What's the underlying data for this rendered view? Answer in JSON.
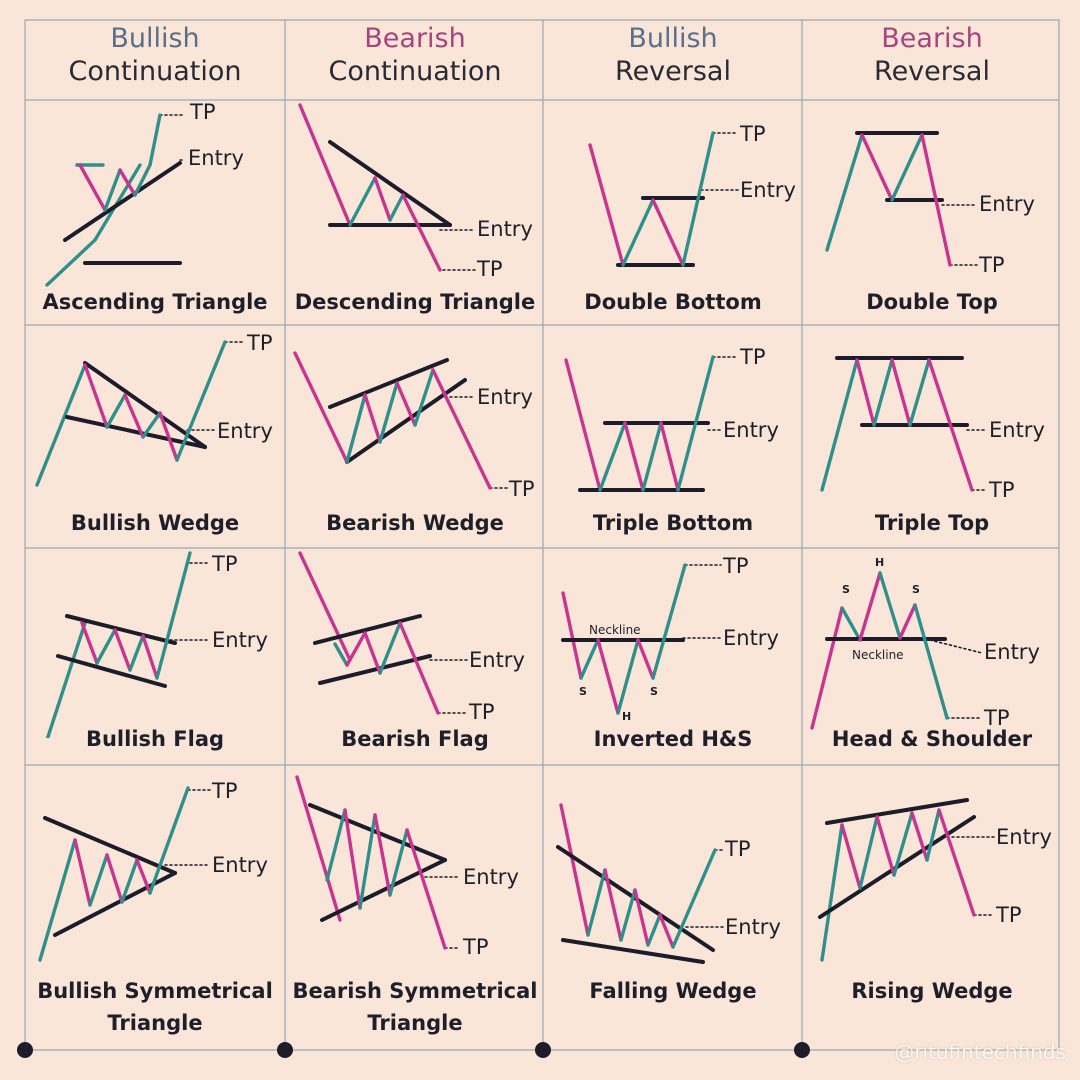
{
  "colors": {
    "background": "#f9e6d8",
    "teal": "#2f8f8a",
    "magenta": "#c8348f",
    "dark": "#1c1c2b",
    "grid": "#9aa7b3",
    "bullish_header": "#5a6f8a",
    "bearish_header": "#a8437f"
  },
  "headers": [
    {
      "line1": "Bullish",
      "line2": "Continuation",
      "tone": "bullish"
    },
    {
      "line1": "Bearish",
      "line2": "Continuation",
      "tone": "bearish"
    },
    {
      "line1": "Bullish",
      "line2": "Reversal",
      "tone": "bullish"
    },
    {
      "line1": "Bearish",
      "line2": "Reversal",
      "tone": "bearish"
    }
  ],
  "patterns": [
    {
      "name": "Ascending Triangle",
      "tp": "TP",
      "entry": "Entry"
    },
    {
      "name": "Descending Triangle",
      "tp": "TP",
      "entry": "Entry"
    },
    {
      "name": "Double Bottom",
      "tp": "TP",
      "entry": "Entry"
    },
    {
      "name": "Double Top",
      "tp": "TP",
      "entry": "Entry"
    },
    {
      "name": "Bullish Wedge",
      "tp": "TP",
      "entry": "Entry"
    },
    {
      "name": "Bearish Wedge",
      "tp": "TP",
      "entry": "Entry"
    },
    {
      "name": "Triple Bottom",
      "tp": "TP",
      "entry": "Entry"
    },
    {
      "name": "Triple Top",
      "tp": "TP",
      "entry": "Entry"
    },
    {
      "name": "Bullish Flag",
      "tp": "TP",
      "entry": "Entry"
    },
    {
      "name": "Bearish Flag",
      "tp": "TP",
      "entry": "Entry"
    },
    {
      "name": "Inverted H&S",
      "tp": "TP",
      "entry": "Entry",
      "neckline": "Neckline",
      "s": "S",
      "h": "H"
    },
    {
      "name": "Head & Shoulder",
      "tp": "TP",
      "entry": "Entry",
      "neckline": "Neckline",
      "s": "S",
      "h": "H"
    },
    {
      "name": "Bullish Symmetrical\nTriangle",
      "tp": "TP",
      "entry": "Entry"
    },
    {
      "name": "Bearish Symmetrical\nTriangle",
      "tp": "TP",
      "entry": "Entry"
    },
    {
      "name": "Falling Wedge",
      "tp": "TP",
      "entry": "Entry"
    },
    {
      "name": "Rising Wedge",
      "tp": "TP",
      "entry": "Entry"
    }
  ],
  "watermark": "@ritufintechfinds"
}
